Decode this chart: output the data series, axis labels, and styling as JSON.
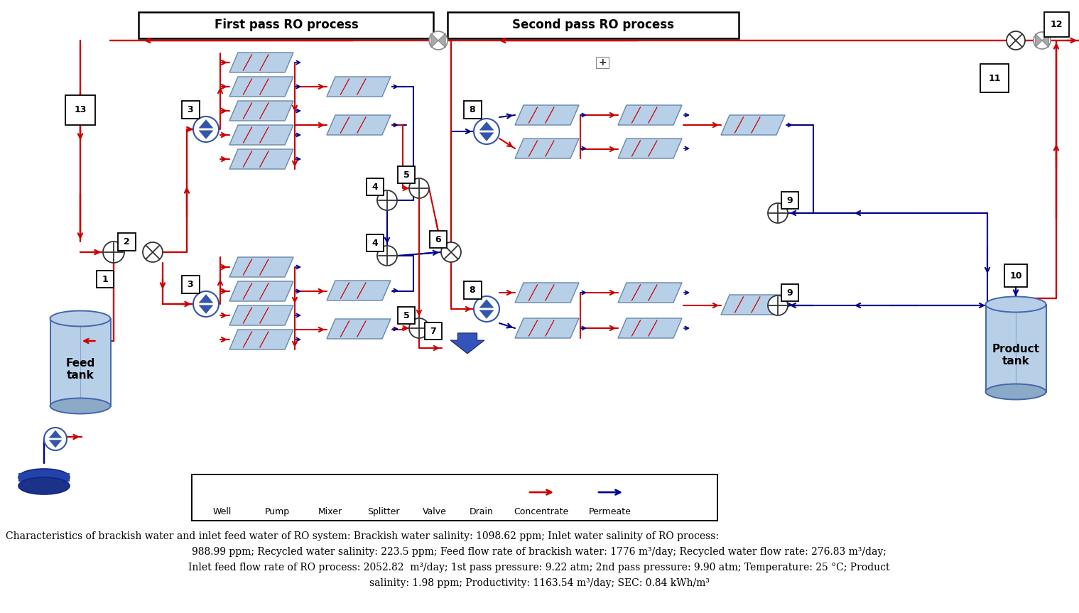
{
  "first_pass_label": "First pass RO process",
  "second_pass_label": "Second pass RO process",
  "bg_color": "#ffffff",
  "red": "#cc0000",
  "blue": "#00008b",
  "tank_fill": "#b8cfe8",
  "tank_dark": "#8aaac8",
  "mem_fill": "#b8cfe8",
  "mem_edge": "#6688aa",
  "pump_edge": "#3355aa",
  "pump_fill": "#3355aa",
  "well_fill": "#3355aa",
  "drain_fill": "#2244aa",
  "caption_line1": "Characteristics of brackish water and inlet feed water of RO system: Brackish water salinity: 1098.62 ppm; Inlet water salinity of RO process:",
  "caption_line2": "988.99 ppm; Recycled water salinity: 223.5 ppm; Feed flow rate of brackish water: 1776 m³/day; Recycled water flow rate: 276.83 m³/day;",
  "caption_line3": "Inlet feed flow rate of RO process: 2052.82  m³/day; 1st pass pressure: 9.22 atm; 2nd pass pressure: 9.90 atm; Temperature: 25 °C; Product",
  "caption_line4": "salinity: 1.98 ppm; Productivity: 1163.54 m³/day; SEC: 0.84 kWh/m³",
  "legend_labels": [
    "Well",
    "Pump",
    "Mixer",
    "Splitter",
    "Valve",
    "Drain",
    "Concentrate",
    "Permeate"
  ]
}
